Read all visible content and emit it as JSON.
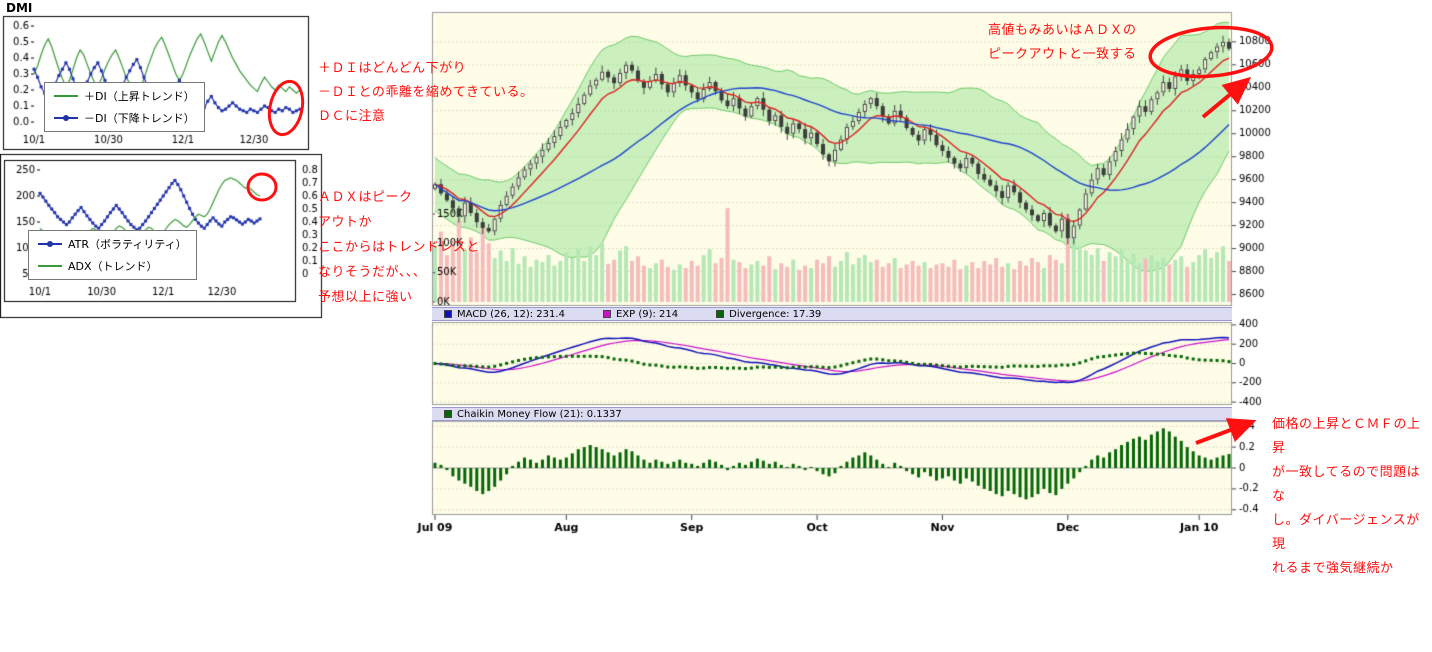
{
  "colors": {
    "annotation_red": "#ff1010",
    "chart_bg": "#fffde8",
    "band_green": "#8ce18c",
    "up_volume": "#b5e8b5",
    "down_volume": "#f5bcbc",
    "ma_fast": "#dd2222",
    "ma_slow": "#2244cc",
    "header_bg": "#dbdbf2"
  },
  "chart_data": [
    {
      "id": "dmi",
      "type": "line",
      "title": "DMI",
      "ylim": [
        0,
        0.6
      ],
      "y_ticks": [
        "0.6",
        "0.5",
        "0.4",
        "0.3",
        "0.2",
        "0.1",
        "0.0"
      ],
      "x_ticks": [
        {
          "label": "10/1",
          "index": 0
        },
        {
          "label": "10/30",
          "index": 21
        },
        {
          "label": "12/1",
          "index": 42
        },
        {
          "label": "12/30",
          "index": 62
        }
      ],
      "legend": [
        {
          "label": "＋DI（上昇トレンド）",
          "color": "#3a9a3a",
          "marker": "line"
        },
        {
          "label": "－DI（下降トレンド）",
          "color": "#2233aa",
          "marker": "dot-line"
        }
      ],
      "series": [
        {
          "name": "+DI",
          "color": "#3a9a3a",
          "values": [
            0.3,
            0.35,
            0.42,
            0.48,
            0.52,
            0.47,
            0.4,
            0.33,
            0.27,
            0.22,
            0.26,
            0.33,
            0.4,
            0.45,
            0.42,
            0.36,
            0.3,
            0.25,
            0.22,
            0.27,
            0.33,
            0.38,
            0.42,
            0.45,
            0.4,
            0.34,
            0.28,
            0.24,
            0.2,
            0.17,
            0.21,
            0.27,
            0.34,
            0.4,
            0.46,
            0.5,
            0.53,
            0.48,
            0.42,
            0.36,
            0.3,
            0.26,
            0.3,
            0.36,
            0.42,
            0.47,
            0.52,
            0.55,
            0.5,
            0.44,
            0.38,
            0.44,
            0.5,
            0.54,
            0.5,
            0.45,
            0.4,
            0.36,
            0.32,
            0.29,
            0.26,
            0.23,
            0.21,
            0.19,
            0.24,
            0.28,
            0.25,
            0.22,
            0.2,
            0.23,
            0.21,
            0.19,
            0.22,
            0.2,
            0.18,
            0.2
          ]
        },
        {
          "name": "-DI",
          "color": "#2233aa",
          "values": [
            0.33,
            0.28,
            0.22,
            0.18,
            0.15,
            0.19,
            0.24,
            0.29,
            0.33,
            0.37,
            0.33,
            0.27,
            0.21,
            0.17,
            0.2,
            0.25,
            0.3,
            0.34,
            0.37,
            0.32,
            0.26,
            0.21,
            0.17,
            0.14,
            0.18,
            0.23,
            0.28,
            0.32,
            0.36,
            0.39,
            0.34,
            0.28,
            0.22,
            0.17,
            0.13,
            0.1,
            0.08,
            0.11,
            0.15,
            0.19,
            0.23,
            0.26,
            0.22,
            0.17,
            0.13,
            0.1,
            0.08,
            0.06,
            0.09,
            0.13,
            0.16,
            0.12,
            0.09,
            0.07,
            0.08,
            0.1,
            0.12,
            0.1,
            0.08,
            0.07,
            0.06,
            0.08,
            0.07,
            0.06,
            0.08,
            0.1,
            0.09,
            0.07,
            0.06,
            0.08,
            0.07,
            0.09,
            0.08,
            0.06,
            0.07,
            0.08
          ]
        }
      ]
    },
    {
      "id": "atr_adx",
      "type": "line",
      "atr_lim": [
        50,
        250
      ],
      "adx_lim": [
        0,
        0.8
      ],
      "left_ticks": [
        "250",
        "200",
        "150",
        "100",
        "50"
      ],
      "right_ticks": [
        "0.8",
        "0.7",
        "0.6",
        "0.5",
        "0.4",
        "0.3",
        "0.2",
        "0.1",
        "0"
      ],
      "x_ticks": [
        {
          "label": "10/1",
          "index": 0
        },
        {
          "label": "10/30",
          "index": 21
        },
        {
          "label": "12/1",
          "index": 42
        },
        {
          "label": "12/30",
          "index": 62
        }
      ],
      "legend": [
        {
          "label": "ATR（ボラティリティ）",
          "color": "#2233aa",
          "marker": "dot-line"
        },
        {
          "label": "ADX（トレンド）",
          "color": "#3a9a3a",
          "marker": "line"
        }
      ],
      "series": [
        {
          "name": "ATR",
          "color": "#2233aa",
          "values": [
            205,
            198,
            190,
            182,
            175,
            168,
            160,
            155,
            150,
            145,
            150,
            158,
            165,
            172,
            178,
            170,
            162,
            155,
            148,
            142,
            138,
            145,
            152,
            160,
            168,
            175,
            182,
            175,
            168,
            160,
            152,
            145,
            140,
            135,
            138,
            145,
            152,
            160,
            168,
            176,
            184,
            192,
            200,
            208,
            216,
            224,
            230,
            222,
            212,
            200,
            188,
            176,
            165,
            155,
            148,
            142,
            138,
            145,
            152,
            158,
            152,
            146,
            142,
            150,
            155,
            160,
            158,
            154,
            150,
            146,
            150,
            155,
            152,
            148,
            152,
            156
          ]
        },
        {
          "name": "ADX",
          "color": "#3a9a3a",
          "values": [
            0.35,
            0.33,
            0.3,
            0.28,
            0.26,
            0.25,
            0.27,
            0.29,
            0.31,
            0.33,
            0.32,
            0.3,
            0.28,
            0.26,
            0.25,
            0.27,
            0.3,
            0.33,
            0.35,
            0.34,
            0.32,
            0.3,
            0.28,
            0.27,
            0.29,
            0.32,
            0.35,
            0.37,
            0.36,
            0.34,
            0.31,
            0.29,
            0.27,
            0.26,
            0.28,
            0.31,
            0.34,
            0.36,
            0.35,
            0.33,
            0.31,
            0.3,
            0.32,
            0.35,
            0.38,
            0.4,
            0.42,
            0.41,
            0.39,
            0.37,
            0.36,
            0.38,
            0.41,
            0.44,
            0.46,
            0.45,
            0.44,
            0.46,
            0.5,
            0.55,
            0.6,
            0.65,
            0.69,
            0.72,
            0.73,
            0.74,
            0.73,
            0.72,
            0.7,
            0.68,
            0.66,
            0.67,
            0.65,
            0.63,
            0.61,
            0.6
          ]
        }
      ]
    },
    {
      "id": "price",
      "type": "candlestick",
      "price_lim": [
        8500,
        11060
      ],
      "price_ticks": [
        "10800",
        "10600",
        "10400",
        "10200",
        "10000",
        "9800",
        "9600",
        "9400",
        "9200",
        "9000",
        "8800",
        "8600"
      ],
      "volume_ticks": [
        "150K",
        "100K",
        "50K",
        "0K"
      ],
      "volume_max_k": 150,
      "x_labels": [
        {
          "label": "Jul 09",
          "index": 0
        },
        {
          "label": "Aug",
          "index": 22
        },
        {
          "label": "Sep",
          "index": 43
        },
        {
          "label": "Oct",
          "index": 64
        },
        {
          "label": "Nov",
          "index": 85
        },
        {
          "label": "Dec",
          "index": 106
        },
        {
          "label": "Jan 10",
          "index": 128
        }
      ],
      "closes": [
        9560,
        9480,
        9420,
        9350,
        9280,
        9400,
        9310,
        9230,
        9180,
        9150,
        9260,
        9380,
        9460,
        9540,
        9620,
        9690,
        9740,
        9800,
        9860,
        9920,
        9980,
        10060,
        10120,
        10180,
        10260,
        10340,
        10420,
        10470,
        10540,
        10490,
        10440,
        10530,
        10600,
        10550,
        10460,
        10400,
        10460,
        10520,
        10430,
        10360,
        10440,
        10510,
        10420,
        10360,
        10300,
        10390,
        10450,
        10370,
        10290,
        10240,
        10310,
        10220,
        10150,
        10240,
        10310,
        10210,
        10110,
        10160,
        10060,
        10000,
        10090,
        10040,
        9960,
        10010,
        9910,
        9820,
        9760,
        9860,
        9950,
        10060,
        10110,
        10190,
        10260,
        10310,
        10240,
        10150,
        10090,
        10200,
        10140,
        10050,
        9990,
        9940,
        10040,
        9990,
        9900,
        9850,
        9790,
        9740,
        9700,
        9790,
        9740,
        9650,
        9600,
        9550,
        9500,
        9440,
        9550,
        9490,
        9400,
        9340,
        9290,
        9240,
        9310,
        9200,
        9150,
        9260,
        9090,
        9200,
        9340,
        9480,
        9600,
        9700,
        9640,
        9760,
        9850,
        9950,
        10040,
        10150,
        10240,
        10190,
        10300,
        10360,
        10450,
        10390,
        10500,
        10560,
        10460,
        10520,
        10560,
        10650,
        10710,
        10760,
        10800,
        10740
      ],
      "volumes_k": [
        95,
        120,
        80,
        105,
        140,
        90,
        110,
        85,
        130,
        100,
        75,
        88,
        70,
        92,
        65,
        78,
        60,
        72,
        68,
        80,
        62,
        70,
        85,
        75,
        90,
        70,
        95,
        80,
        100,
        65,
        72,
        88,
        95,
        70,
        78,
        62,
        58,
        66,
        72,
        60,
        55,
        64,
        58,
        70,
        62,
        80,
        90,
        66,
        75,
        160,
        72,
        68,
        58,
        64,
        70,
        62,
        78,
        56,
        66,
        60,
        72,
        55,
        62,
        58,
        72,
        66,
        78,
        60,
        70,
        85,
        64,
        75,
        80,
        68,
        72,
        60,
        66,
        75,
        58,
        64,
        70,
        62,
        68,
        58,
        64,
        66,
        60,
        72,
        56,
        62,
        68,
        58,
        70,
        64,
        75,
        60,
        66,
        56,
        70,
        62,
        75,
        68,
        58,
        80,
        72,
        66,
        150,
        110,
        95,
        88,
        80,
        92,
        70,
        85,
        78,
        90,
        72,
        82,
        66,
        74,
        80,
        70,
        76,
        64,
        72,
        78,
        60,
        68,
        80,
        90,
        75,
        85,
        95,
        70
      ],
      "overlays": [
        "bollinger-band",
        "red-fast-ma",
        "blue-slow-ma",
        "volume"
      ]
    },
    {
      "id": "macd",
      "type": "line",
      "ylim": [
        -430,
        430
      ],
      "right_ticks": [
        "400",
        "200",
        "0",
        "-200",
        "-400"
      ],
      "legend": [
        {
          "label": "MACD (26, 12): 231.4",
          "color": "#1111bb",
          "marker": "square"
        },
        {
          "label": "EXP (9): 214",
          "color": "#cc11cc",
          "marker": "square"
        },
        {
          "label": "Divergence: 17.39",
          "color": "#056605",
          "marker": "square"
        }
      ]
    },
    {
      "id": "cmf",
      "type": "bar",
      "ylim": [
        -0.45,
        0.45
      ],
      "right_ticks": [
        "0.4",
        "0.2",
        "0",
        "-0.2",
        "-0.4"
      ],
      "legend": [
        {
          "label": "Chaikin Money Flow (21): 0.1337",
          "color": "#056605",
          "marker": "square"
        }
      ],
      "values": [
        0.05,
        0.03,
        -0.02,
        -0.08,
        -0.12,
        -0.15,
        -0.18,
        -0.22,
        -0.25,
        -0.22,
        -0.18,
        -0.12,
        -0.06,
        0.02,
        0.06,
        0.1,
        0.08,
        0.05,
        0.08,
        0.12,
        0.1,
        0.08,
        0.1,
        0.14,
        0.18,
        0.2,
        0.22,
        0.2,
        0.18,
        0.15,
        0.12,
        0.15,
        0.18,
        0.16,
        0.12,
        0.08,
        0.05,
        0.08,
        0.06,
        0.04,
        0.06,
        0.08,
        0.05,
        0.04,
        0.02,
        0.05,
        0.08,
        0.06,
        0.03,
        -0.02,
        0.02,
        0.05,
        0.03,
        0.06,
        0.09,
        0.07,
        0.04,
        0.06,
        0.03,
        0.01,
        0.04,
        0.02,
        -0.02,
        0.01,
        -0.03,
        -0.06,
        -0.08,
        -0.05,
        0.02,
        0.06,
        0.1,
        0.12,
        0.15,
        0.12,
        0.08,
        0.04,
        0.01,
        0.05,
        0.02,
        -0.03,
        -0.06,
        -0.09,
        -0.04,
        -0.08,
        -0.12,
        -0.1,
        -0.08,
        -0.12,
        -0.15,
        -0.1,
        -0.13,
        -0.17,
        -0.2,
        -0.22,
        -0.25,
        -0.27,
        -0.22,
        -0.25,
        -0.28,
        -0.3,
        -0.28,
        -0.25,
        -0.2,
        -0.24,
        -0.26,
        -0.2,
        -0.15,
        -0.1,
        -0.04,
        0.02,
        0.08,
        0.12,
        0.1,
        0.15,
        0.18,
        0.22,
        0.25,
        0.28,
        0.3,
        0.27,
        0.32,
        0.35,
        0.38,
        0.35,
        0.3,
        0.26,
        0.2,
        0.16,
        0.12,
        0.1,
        0.08,
        0.1,
        0.12,
        0.1337
      ]
    }
  ],
  "annotations": {
    "dmi_note": "＋ＤＩはどんどん下がり\n－ＤＩとの乖離を縮めてきている。\nＤＣに注意",
    "adx_note": "ＡＤＸはピーク\nアウトか\nここからはトレンドレスと\nなりそうだが、、、\n予想以上に強い",
    "peak_note": "高値もみあいはＡＤＸの\nピークアウトと一致する",
    "cmf_note": "価格の上昇とＣＭＦの上昇\nが一致してるので問題はな\nし。ダイバージェンスが現\nれるまで強気継続か"
  }
}
